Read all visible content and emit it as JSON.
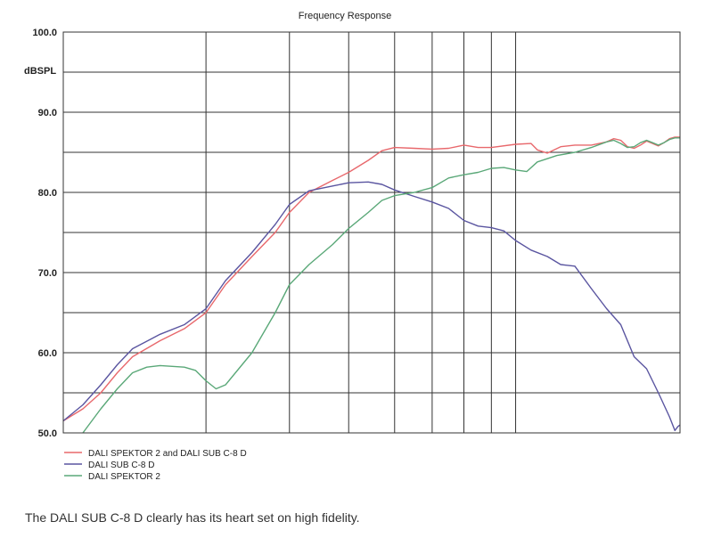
{
  "chart_data": {
    "type": "line",
    "title": "Frequency Response",
    "ylabel": "dBSPL",
    "ylim": [
      50,
      100
    ],
    "yticks": [
      {
        "value": 100,
        "label": "100.0"
      },
      {
        "value": 90,
        "label": "90.0"
      },
      {
        "value": 80,
        "label": "80.0"
      },
      {
        "value": 70,
        "label": "70.0"
      },
      {
        "value": 60,
        "label": "60.0"
      },
      {
        "value": 50,
        "label": "50.0"
      }
    ],
    "xscale": "log",
    "xlim": [
      10,
      200
    ],
    "grid": true,
    "legend_position": "bottom-left",
    "series": [
      {
        "name": "DALI SPEKTOR 2 and DALI SUB C-8 D",
        "color": "#e8686c",
        "points": [
          [
            10,
            51.5
          ],
          [
            11,
            53
          ],
          [
            12,
            55
          ],
          [
            13,
            57.5
          ],
          [
            14,
            59.5
          ],
          [
            16,
            61.5
          ],
          [
            18,
            63
          ],
          [
            20,
            65
          ],
          [
            22,
            68.5
          ],
          [
            25,
            72
          ],
          [
            28,
            75
          ],
          [
            30,
            77.5
          ],
          [
            33,
            80
          ],
          [
            37,
            81.5
          ],
          [
            40,
            82.5
          ],
          [
            44,
            84
          ],
          [
            47,
            85.2
          ],
          [
            50,
            85.6
          ],
          [
            55,
            85.5
          ],
          [
            60,
            85.4
          ],
          [
            65,
            85.5
          ],
          [
            70,
            85.9
          ],
          [
            75,
            85.6
          ],
          [
            80,
            85.6
          ],
          [
            90,
            86
          ],
          [
            97,
            86.1
          ],
          [
            100,
            85.3
          ],
          [
            105,
            84.9
          ],
          [
            112,
            85.7
          ],
          [
            120,
            85.9
          ],
          [
            130,
            85.9
          ],
          [
            140,
            86.3
          ],
          [
            145,
            86.7
          ],
          [
            150,
            86.5
          ],
          [
            155,
            85.7
          ],
          [
            160,
            85.5
          ],
          [
            165,
            85.9
          ],
          [
            170,
            86.4
          ],
          [
            175,
            86.1
          ],
          [
            180,
            85.8
          ],
          [
            185,
            86.2
          ],
          [
            190,
            86.7
          ],
          [
            195,
            86.9
          ],
          [
            200,
            86.9
          ]
        ]
      },
      {
        "name": "DALI SUB C-8 D",
        "color": "#5a55a0",
        "points": [
          [
            10,
            51.5
          ],
          [
            11,
            53.5
          ],
          [
            12,
            56
          ],
          [
            13,
            58.5
          ],
          [
            14,
            60.5
          ],
          [
            16,
            62.3
          ],
          [
            18,
            63.5
          ],
          [
            20,
            65.5
          ],
          [
            22,
            69
          ],
          [
            25,
            72.5
          ],
          [
            28,
            76
          ],
          [
            30,
            78.5
          ],
          [
            33,
            80.2
          ],
          [
            37,
            80.8
          ],
          [
            40,
            81.2
          ],
          [
            44,
            81.3
          ],
          [
            47,
            81
          ],
          [
            50,
            80.3
          ],
          [
            55,
            79.5
          ],
          [
            60,
            78.8
          ],
          [
            65,
            78
          ],
          [
            70,
            76.5
          ],
          [
            75,
            75.8
          ],
          [
            80,
            75.6
          ],
          [
            85,
            75.2
          ],
          [
            90,
            74
          ],
          [
            97,
            72.8
          ],
          [
            105,
            72
          ],
          [
            112,
            71
          ],
          [
            120,
            70.8
          ],
          [
            130,
            68
          ],
          [
            140,
            65.5
          ],
          [
            150,
            63.5
          ],
          [
            160,
            59.5
          ],
          [
            170,
            58
          ],
          [
            180,
            55
          ],
          [
            190,
            52
          ],
          [
            195,
            50.3
          ],
          [
            198,
            50.8
          ],
          [
            200,
            51
          ]
        ]
      },
      {
        "name": "DALI SPEKTOR 2",
        "color": "#5aa878",
        "points": [
          [
            11,
            50
          ],
          [
            12,
            53
          ],
          [
            13,
            55.5
          ],
          [
            14,
            57.5
          ],
          [
            15,
            58.2
          ],
          [
            16,
            58.4
          ],
          [
            18,
            58.2
          ],
          [
            19,
            57.8
          ],
          [
            20,
            56.5
          ],
          [
            21,
            55.5
          ],
          [
            22,
            56
          ],
          [
            25,
            60
          ],
          [
            28,
            65
          ],
          [
            30,
            68.5
          ],
          [
            33,
            71
          ],
          [
            37,
            73.5
          ],
          [
            40,
            75.5
          ],
          [
            44,
            77.5
          ],
          [
            47,
            79
          ],
          [
            50,
            79.6
          ],
          [
            55,
            80
          ],
          [
            60,
            80.6
          ],
          [
            65,
            81.8
          ],
          [
            70,
            82.2
          ],
          [
            75,
            82.5
          ],
          [
            80,
            83
          ],
          [
            85,
            83.1
          ],
          [
            90,
            82.8
          ],
          [
            95,
            82.6
          ],
          [
            100,
            83.8
          ],
          [
            110,
            84.6
          ],
          [
            120,
            85
          ],
          [
            130,
            85.6
          ],
          [
            140,
            86.3
          ],
          [
            145,
            86.5
          ],
          [
            150,
            86.1
          ],
          [
            155,
            85.6
          ],
          [
            160,
            85.7
          ],
          [
            165,
            86.2
          ],
          [
            170,
            86.5
          ],
          [
            175,
            86.2
          ],
          [
            180,
            85.9
          ],
          [
            185,
            86.2
          ],
          [
            190,
            86.6
          ],
          [
            195,
            86.8
          ],
          [
            200,
            86.8
          ]
        ]
      }
    ]
  },
  "caption": "The DALI SUB C-8 D clearly has its heart set on high fidelity."
}
